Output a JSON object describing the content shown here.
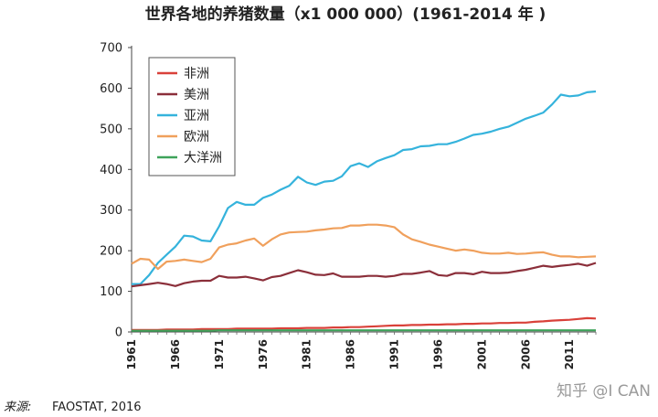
{
  "chart_data": {
    "type": "line",
    "title": "世界各地的养猪数量（x1 000 000）(1961-2014 年 )",
    "xlabel": "",
    "ylabel": "",
    "ylim": [
      0,
      700
    ],
    "yticks": [
      0,
      100,
      200,
      300,
      400,
      500,
      600,
      700
    ],
    "xlim": [
      1961,
      2014
    ],
    "xticks": [
      1961,
      1966,
      1971,
      1976,
      1981,
      1986,
      1991,
      1996,
      2001,
      2006,
      2011
    ],
    "grid": false,
    "legend_position": "top-left",
    "x": [
      1961,
      1962,
      1963,
      1964,
      1965,
      1966,
      1967,
      1968,
      1969,
      1970,
      1971,
      1972,
      1973,
      1974,
      1975,
      1976,
      1977,
      1978,
      1979,
      1980,
      1981,
      1982,
      1983,
      1984,
      1985,
      1986,
      1987,
      1988,
      1989,
      1990,
      1991,
      1992,
      1993,
      1994,
      1995,
      1996,
      1997,
      1998,
      1999,
      2000,
      2001,
      2002,
      2003,
      2004,
      2005,
      2006,
      2007,
      2008,
      2009,
      2010,
      2011,
      2012,
      2013,
      2014
    ],
    "series": [
      {
        "name": "非洲",
        "color": "#d9413a",
        "values": [
          5,
          5,
          5,
          5,
          6,
          6,
          6,
          6,
          7,
          7,
          7,
          7,
          8,
          8,
          8,
          8,
          8,
          9,
          9,
          9,
          10,
          10,
          10,
          11,
          11,
          12,
          12,
          13,
          14,
          15,
          16,
          16,
          17,
          17,
          18,
          18,
          19,
          19,
          20,
          20,
          21,
          21,
          22,
          22,
          23,
          23,
          25,
          26,
          28,
          29,
          30,
          32,
          34,
          33
        ]
      },
      {
        "name": "美洲",
        "color": "#8b2f3a",
        "values": [
          112,
          115,
          118,
          121,
          118,
          113,
          120,
          124,
          126,
          126,
          138,
          134,
          134,
          136,
          132,
          127,
          135,
          138,
          145,
          152,
          147,
          141,
          140,
          144,
          136,
          136,
          136,
          138,
          138,
          136,
          138,
          143,
          143,
          146,
          150,
          140,
          138,
          145,
          145,
          142,
          148,
          145,
          145,
          146,
          150,
          153,
          158,
          163,
          160,
          163,
          165,
          168,
          163,
          170
        ]
      },
      {
        "name": "亚洲",
        "color": "#35b3dc",
        "values": [
          118,
          118,
          140,
          170,
          190,
          210,
          237,
          235,
          225,
          223,
          260,
          305,
          320,
          313,
          313,
          330,
          338,
          350,
          360,
          382,
          368,
          362,
          370,
          372,
          383,
          408,
          415,
          406,
          420,
          428,
          435,
          448,
          450,
          457,
          458,
          462,
          462,
          468,
          476,
          485,
          488,
          493,
          500,
          505,
          515,
          525,
          532,
          540,
          560,
          584,
          580,
          582,
          590,
          592
        ]
      },
      {
        "name": "欧洲",
        "color": "#f0a05c",
        "values": [
          168,
          180,
          178,
          155,
          173,
          175,
          178,
          175,
          172,
          180,
          208,
          215,
          218,
          225,
          230,
          212,
          228,
          240,
          245,
          246,
          247,
          250,
          252,
          255,
          256,
          262,
          262,
          264,
          264,
          262,
          258,
          240,
          228,
          222,
          215,
          210,
          205,
          200,
          203,
          200,
          195,
          193,
          193,
          195,
          192,
          193,
          195,
          196,
          190,
          186,
          186,
          184,
          185,
          186
        ]
      },
      {
        "name": "大洋洲",
        "color": "#3ea35a",
        "values": [
          3,
          3,
          3,
          3,
          3,
          3,
          3,
          3,
          3,
          3,
          4,
          4,
          4,
          4,
          4,
          4,
          4,
          4,
          4,
          4,
          4,
          4,
          4,
          4,
          4,
          4,
          4,
          4,
          4,
          4,
          4,
          4,
          4,
          4,
          4,
          4,
          4,
          4,
          4,
          4,
          4,
          4,
          4,
          4,
          4,
          4,
          4,
          4,
          4,
          4,
          4,
          4,
          4,
          4
        ]
      }
    ]
  },
  "source": {
    "label": "来源:",
    "text": "FAOSTAT, 2016"
  },
  "watermark": "知乎 @I CAN"
}
